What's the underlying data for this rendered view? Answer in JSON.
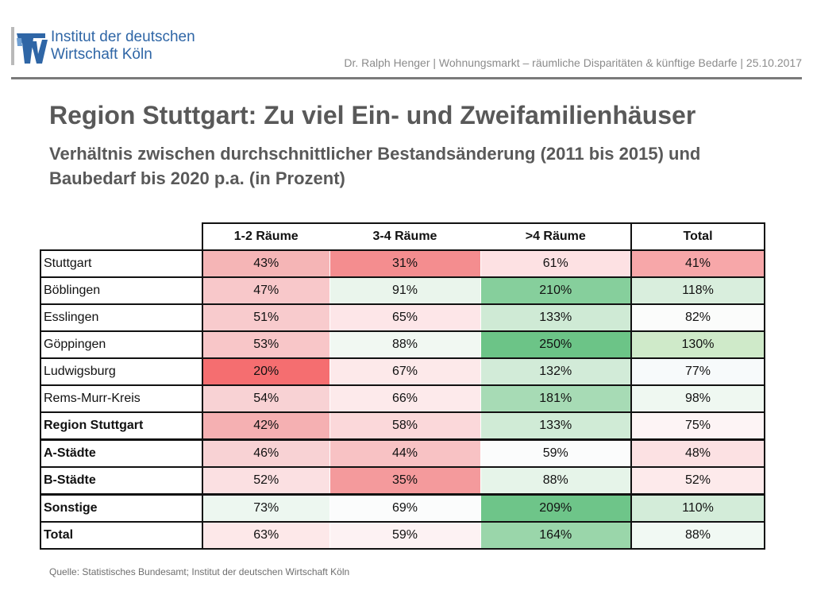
{
  "header": {
    "logo_line1": "Institut der deutschen",
    "logo_line2": "Wirtschaft Köln",
    "meta": "Dr. Ralph Henger | Wohnungsmarkt – räumliche Disparitäten & künftige Bedarfe | 25.10.2017"
  },
  "title": "Region Stuttgart: Zu viel Ein- und Zweifamilienhäuser",
  "subtitle": "Verhältnis zwischen durchschnittlicher Bestandsänderung (2011 bis 2015) und Baubedarf bis 2020 p.a. (in Prozent)",
  "table": {
    "columns": [
      "1-2 Räume",
      "3-4 Räume",
      ">4 Räume",
      "Total"
    ],
    "rows": [
      {
        "label": "Stuttgart",
        "bold": false,
        "values": [
          "43%",
          "31%",
          "61%",
          "41%"
        ],
        "colors": [
          "#f5b5b6",
          "#f48d8f",
          "#fde1e3",
          "#f7a7a9"
        ]
      },
      {
        "label": "Böblingen",
        "bold": false,
        "values": [
          "47%",
          "91%",
          "210%",
          "118%"
        ],
        "colors": [
          "#f8c8ca",
          "#eaf5ec",
          "#86cf9c",
          "#d9eedd"
        ]
      },
      {
        "label": "Esslingen",
        "bold": false,
        "values": [
          "51%",
          "65%",
          "133%",
          "82%"
        ],
        "colors": [
          "#f8cbcd",
          "#fde6e8",
          "#cfead5",
          "#fbfcfb"
        ]
      },
      {
        "label": "Göppingen",
        "bold": false,
        "values": [
          "53%",
          "88%",
          "250%",
          "130%"
        ],
        "colors": [
          "#f8c6c8",
          "#f1f8f2",
          "#6cc487",
          "#cfeac9"
        ]
      },
      {
        "label": "Ludwigsburg",
        "bold": false,
        "values": [
          "20%",
          "67%",
          "132%",
          "77%"
        ],
        "colors": [
          "#f56e70",
          "#fde9ea",
          "#d2ebd8",
          "#f7fafb"
        ]
      },
      {
        "label": "Rems-Murr-Kreis",
        "bold": false,
        "values": [
          "54%",
          "66%",
          "181%",
          "98%"
        ],
        "colors": [
          "#f8d2d4",
          "#fdeaeb",
          "#a7dbb5",
          "#eff8f1"
        ]
      },
      {
        "label": "Region Stuttgart",
        "bold": true,
        "values": [
          "42%",
          "58%",
          "133%",
          "75%"
        ],
        "colors": [
          "#f5b0b2",
          "#fbd8da",
          "#d0ebd6",
          "#fdf4f5"
        ]
      },
      {
        "label": "A-Städte",
        "bold": true,
        "values": [
          "46%",
          "44%",
          "59%",
          "48%"
        ],
        "colors": [
          "#f8d2d4",
          "#f8c2c4",
          "#fbfcfc",
          "#fce1e3"
        ],
        "separator": true
      },
      {
        "label": "B-Städte",
        "bold": true,
        "values": [
          "52%",
          "35%",
          "88%",
          "52%"
        ],
        "colors": [
          "#fbe0e2",
          "#f49a9c",
          "#e6f4e9",
          "#fdeaeb"
        ]
      },
      {
        "label": "Sonstige",
        "bold": true,
        "values": [
          "73%",
          "69%",
          "209%",
          "110%"
        ],
        "colors": [
          "#edf7f0",
          "#fbfcfc",
          "#6ec589",
          "#d3ecd9"
        ],
        "separator": true
      },
      {
        "label": "Total",
        "bold": true,
        "values": [
          "63%",
          "59%",
          "164%",
          "88%"
        ],
        "colors": [
          "#fde8e9",
          "#fdf2f3",
          "#9ad6aa",
          "#f1f9f3"
        ]
      }
    ]
  },
  "source": "Quelle: Statistisches Bundesamt; Institut der deutschen Wirtschaft Köln",
  "colors": {
    "logo_blue": "#2f66a6",
    "title_gray": "#595959"
  },
  "icons": {
    "logo": "iw-logo-icon"
  }
}
